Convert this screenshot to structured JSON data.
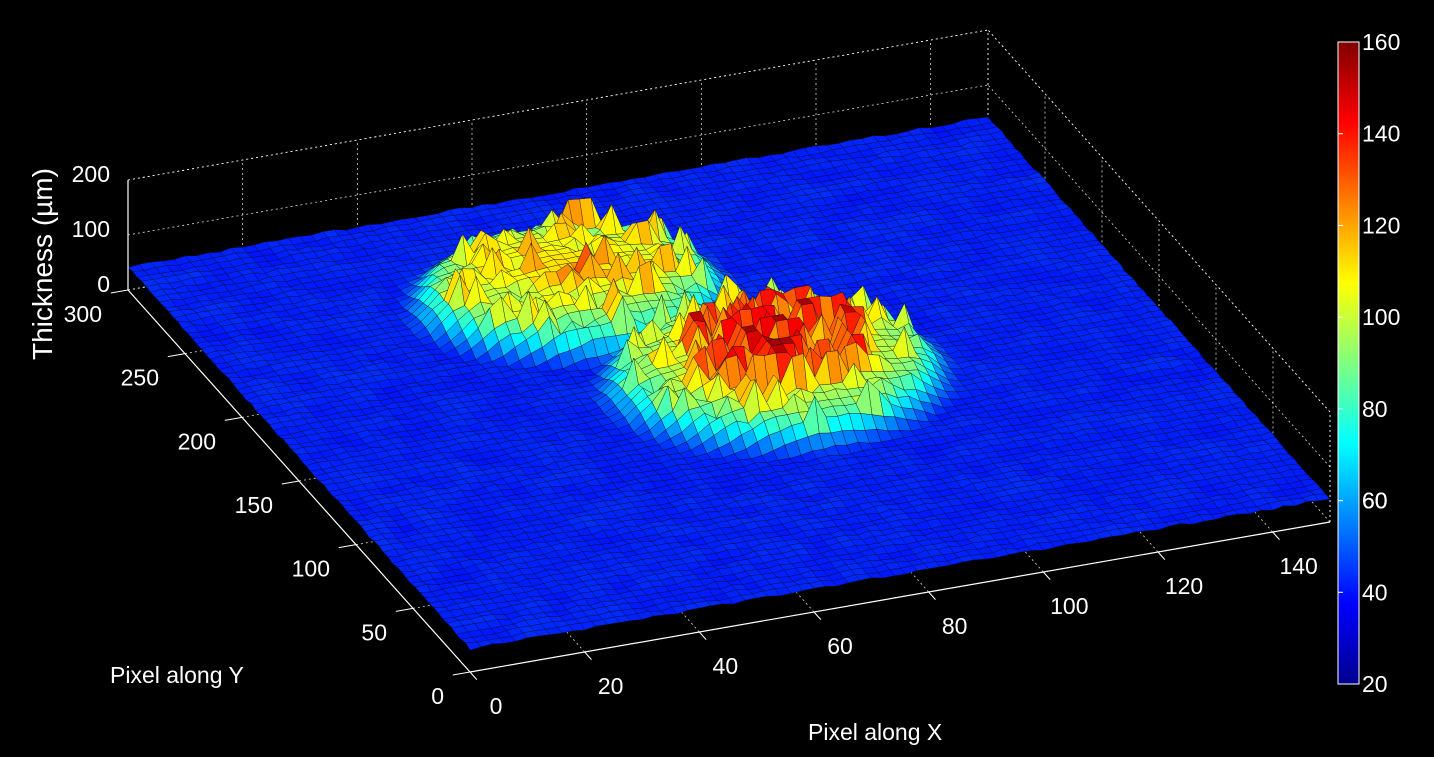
{
  "chart_data": {
    "type": "surface3d",
    "xlabel": "Pixel along X",
    "ylabel": "Pixel along Y",
    "zlabel": "Thickness (µm)",
    "x_ticks": [
      "0",
      "20",
      "40",
      "60",
      "80",
      "100",
      "120",
      "140"
    ],
    "y_ticks": [
      "0",
      "50",
      "100",
      "150",
      "200",
      "250",
      "300"
    ],
    "z_ticks": [
      "0",
      "100",
      "200"
    ],
    "xlim": [
      0,
      150
    ],
    "ylim": [
      0,
      300
    ],
    "zlim": [
      0,
      200
    ],
    "grid": true,
    "colormap": "jet",
    "colorbar": {
      "placement": "right",
      "range": [
        20,
        160
      ],
      "ticks": [
        "20",
        "40",
        "60",
        "60",
        "80",
        "100",
        "120",
        "140",
        "160"
      ]
    },
    "surface": {
      "baseline_thickness": 42,
      "feature": "central raised region elongated along Y, roughly x 40-110, y 100-270",
      "feature_peak": 155
    }
  }
}
